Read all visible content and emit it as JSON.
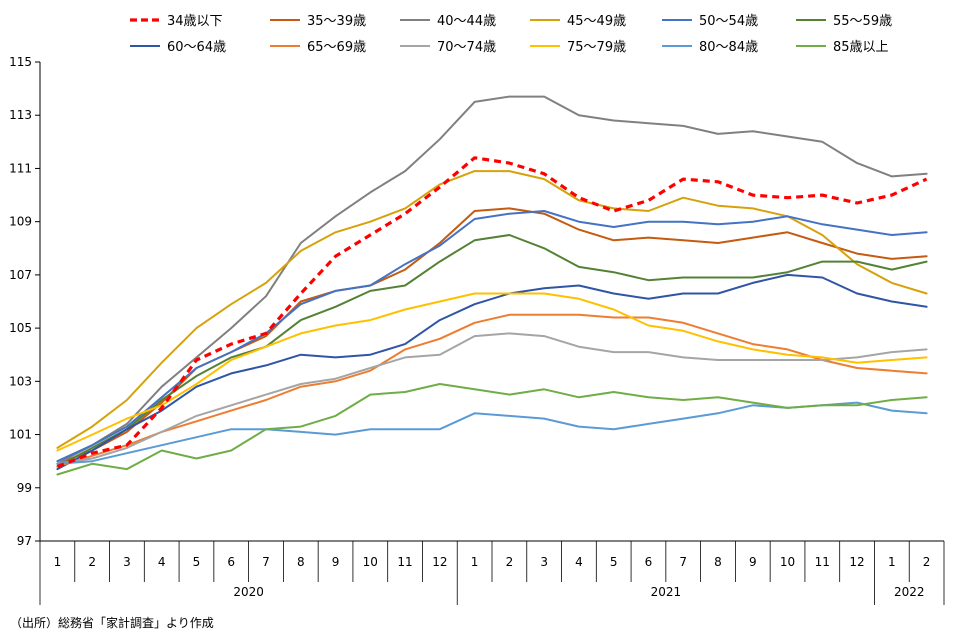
{
  "chart_data": {
    "type": "line",
    "title": "",
    "xlabel": "",
    "ylabel": "",
    "ylim": [
      97,
      115
    ],
    "yticks": [
      97,
      99,
      101,
      103,
      105,
      107,
      109,
      111,
      113,
      115
    ],
    "grid": false,
    "legend_position": "top",
    "categories": [
      "1",
      "2",
      "3",
      "4",
      "5",
      "6",
      "7",
      "8",
      "9",
      "10",
      "11",
      "12",
      "1",
      "2",
      "3",
      "4",
      "5",
      "6",
      "7",
      "8",
      "9",
      "10",
      "11",
      "12",
      "1",
      "2"
    ],
    "year_groups": [
      {
        "label": "2020",
        "count": 12
      },
      {
        "label": "2021",
        "count": 12
      },
      {
        "label": "2022",
        "count": 2
      }
    ],
    "series": [
      {
        "name": "34歳以下",
        "color": "#ff0000",
        "dashed": true,
        "values": [
          99.8,
          100.3,
          100.6,
          102.0,
          103.8,
          104.4,
          104.8,
          106.3,
          107.7,
          108.5,
          109.3,
          110.3,
          111.4,
          111.2,
          110.8,
          109.9,
          109.4,
          109.8,
          110.6,
          110.5,
          110.0,
          109.9,
          110.0,
          109.7,
          110.0,
          110.6
        ]
      },
      {
        "name": "35～39歳",
        "color": "#c55a11",
        "values": [
          99.9,
          100.4,
          101.1,
          102.2,
          103.5,
          104.1,
          104.7,
          106.0,
          106.4,
          106.6,
          107.2,
          108.2,
          109.4,
          109.5,
          109.3,
          108.7,
          108.3,
          108.4,
          108.3,
          108.2,
          108.4,
          108.6,
          108.2,
          107.8,
          107.6,
          107.7
        ]
      },
      {
        "name": "40～44歳",
        "color": "#808080",
        "values": [
          99.9,
          100.6,
          101.4,
          102.8,
          103.9,
          105.0,
          106.2,
          108.2,
          109.2,
          110.1,
          110.9,
          112.1,
          113.5,
          113.7,
          113.7,
          113.0,
          112.8,
          112.7,
          112.6,
          112.3,
          112.4,
          112.2,
          112.0,
          111.2,
          110.7,
          110.8
        ]
      },
      {
        "name": "45～49歳",
        "color": "#d6a10a",
        "values": [
          100.5,
          101.3,
          102.3,
          103.7,
          105.0,
          105.9,
          106.7,
          107.9,
          108.6,
          109.0,
          109.5,
          110.4,
          110.9,
          110.9,
          110.6,
          109.8,
          109.5,
          109.4,
          109.9,
          109.6,
          109.5,
          109.2,
          108.5,
          107.4,
          106.7,
          106.3
        ]
      },
      {
        "name": "50～54歳",
        "color": "#4472c4",
        "values": [
          100.0,
          100.6,
          101.3,
          102.4,
          103.5,
          104.1,
          104.8,
          105.9,
          106.4,
          106.6,
          107.4,
          108.1,
          109.1,
          109.3,
          109.4,
          109.0,
          108.8,
          109.0,
          109.0,
          108.9,
          109.0,
          109.2,
          108.9,
          108.7,
          108.5,
          108.6
        ]
      },
      {
        "name": "55～59歳",
        "color": "#548235",
        "values": [
          99.8,
          100.5,
          101.2,
          102.3,
          103.2,
          103.9,
          104.3,
          105.3,
          105.8,
          106.4,
          106.6,
          107.5,
          108.3,
          108.5,
          108.0,
          107.3,
          107.1,
          106.8,
          106.9,
          106.9,
          106.9,
          107.1,
          107.5,
          107.5,
          107.2,
          107.5
        ]
      },
      {
        "name": "60～64歳",
        "color": "#2f55a4",
        "values": [
          99.7,
          100.4,
          101.2,
          101.9,
          102.8,
          103.3,
          103.6,
          104.0,
          103.9,
          104.0,
          104.4,
          105.3,
          105.9,
          106.3,
          106.5,
          106.6,
          106.3,
          106.1,
          106.3,
          106.3,
          106.7,
          107.0,
          106.9,
          106.3,
          106.0,
          105.8
        ]
      },
      {
        "name": "65～69歳",
        "color": "#ed7d31",
        "values": [
          99.8,
          100.2,
          100.6,
          101.1,
          101.5,
          101.9,
          102.3,
          102.8,
          103.0,
          103.4,
          104.2,
          104.6,
          105.2,
          105.5,
          105.5,
          105.5,
          105.4,
          105.4,
          105.2,
          104.8,
          104.4,
          104.2,
          103.8,
          103.5,
          103.4,
          103.3
        ]
      },
      {
        "name": "70～74歳",
        "color": "#a5a5a5",
        "values": [
          99.9,
          100.1,
          100.5,
          101.1,
          101.7,
          102.1,
          102.5,
          102.9,
          103.1,
          103.5,
          103.9,
          104.0,
          104.7,
          104.8,
          104.7,
          104.3,
          104.1,
          104.1,
          103.9,
          103.8,
          103.8,
          103.8,
          103.8,
          103.9,
          104.1,
          104.2
        ]
      },
      {
        "name": "75～79歳",
        "color": "#ffc000",
        "values": [
          100.4,
          101.0,
          101.6,
          102.1,
          102.9,
          103.8,
          104.3,
          104.8,
          105.1,
          105.3,
          105.7,
          106.0,
          106.3,
          106.3,
          106.3,
          106.1,
          105.7,
          105.1,
          104.9,
          104.5,
          104.2,
          104.0,
          103.9,
          103.7,
          103.8,
          103.9
        ]
      },
      {
        "name": "80～84歳",
        "color": "#5b9bd5",
        "values": [
          99.9,
          100.0,
          100.3,
          100.6,
          100.9,
          101.2,
          101.2,
          101.1,
          101.0,
          101.2,
          101.2,
          101.2,
          101.8,
          101.7,
          101.6,
          101.3,
          101.2,
          101.4,
          101.6,
          101.8,
          102.1,
          102.0,
          102.1,
          102.2,
          101.9,
          101.8
        ]
      },
      {
        "name": "85歳以上",
        "color": "#70ad47",
        "values": [
          99.5,
          99.9,
          99.7,
          100.4,
          100.1,
          100.4,
          101.2,
          101.3,
          101.7,
          102.5,
          102.6,
          102.9,
          102.7,
          102.5,
          102.7,
          102.4,
          102.6,
          102.4,
          102.3,
          102.4,
          102.2,
          102.0,
          102.1,
          102.1,
          102.3,
          102.4
        ]
      }
    ]
  },
  "footer": {
    "source": "（出所）総務省「家計調査」より作成"
  }
}
